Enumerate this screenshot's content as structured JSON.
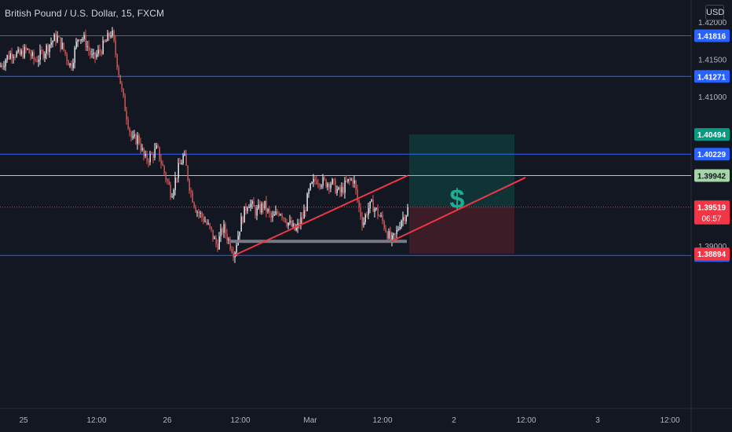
{
  "title": "British Pound / U.S. Dollar, 15, FXCM",
  "currency_button": "USD",
  "chart_data": {
    "type": "candlestick",
    "ylim": [
      1.3865,
      1.4215
    ],
    "y_ticks": [
      "1.42000",
      "1.41500",
      "1.41000",
      "1.39000"
    ],
    "x_ticks": [
      "25",
      "12:00",
      "26",
      "12:00",
      "Mar",
      "12:00",
      "2",
      "12:00",
      "3",
      "12:00"
    ],
    "price_lines": [
      {
        "value": 1.41816,
        "label": "1.41816",
        "color": "#2962ff"
      },
      {
        "value": 1.41271,
        "label": "1.41271",
        "color": "#2962ff"
      },
      {
        "value": 1.40229,
        "label": "1.40229",
        "color": "#2962ff"
      },
      {
        "value": 1.39942,
        "label": "1.39942",
        "color": "#a5d6a7"
      },
      {
        "value": 1.38871,
        "label": "1.38871",
        "color": "#2962ff"
      }
    ],
    "tags": [
      {
        "value": 1.40494,
        "label": "1.40494",
        "bg": "#089981",
        "fg": "#ffffff"
      },
      {
        "value": 1.39528,
        "label": "1.39528",
        "bg": "#4a4e58",
        "fg": "#ffffff"
      },
      {
        "value": 1.38894,
        "label": "1.38894",
        "bg": "#f23645",
        "fg": "#ffffff"
      }
    ],
    "last_price": {
      "value": 1.39519,
      "label": "1.39519",
      "countdown": "06:57",
      "color": "#f23645"
    },
    "close_path": [
      [
        0,
        1.414
      ],
      [
        8,
        1.4152
      ],
      [
        16,
        1.416
      ],
      [
        24,
        1.4155
      ],
      [
        34,
        1.4163
      ],
      [
        44,
        1.4148
      ],
      [
        54,
        1.4158
      ],
      [
        64,
        1.4172
      ],
      [
        72,
        1.418
      ],
      [
        80,
        1.4165
      ],
      [
        90,
        1.414
      ],
      [
        100,
        1.4183
      ],
      [
        108,
        1.4175
      ],
      [
        118,
        1.415
      ],
      [
        126,
        1.416
      ],
      [
        134,
        1.4172
      ],
      [
        142,
        1.4188
      ],
      [
        150,
        1.414
      ],
      [
        156,
        1.41
      ],
      [
        162,
        1.407
      ],
      [
        168,
        1.404
      ],
      [
        176,
        1.4045
      ],
      [
        184,
        1.4015
      ],
      [
        192,
        1.402
      ],
      [
        200,
        1.403
      ],
      [
        210,
        1.3995
      ],
      [
        218,
        1.397
      ],
      [
        226,
        1.4
      ],
      [
        234,
        1.4022
      ],
      [
        242,
        1.3975
      ],
      [
        250,
        1.3948
      ],
      [
        260,
        1.3935
      ],
      [
        268,
        1.392
      ],
      [
        276,
        1.39
      ],
      [
        284,
        1.3925
      ],
      [
        292,
        1.3905
      ],
      [
        298,
        1.389
      ],
      [
        306,
        1.393
      ],
      [
        316,
        1.396
      ],
      [
        326,
        1.3945
      ],
      [
        336,
        1.3955
      ],
      [
        346,
        1.3935
      ],
      [
        356,
        1.3948
      ],
      [
        366,
        1.3932
      ],
      [
        376,
        1.392
      ],
      [
        386,
        1.394
      ],
      [
        394,
        1.3975
      ],
      [
        402,
        1.399
      ],
      [
        412,
        1.3985
      ],
      [
        422,
        1.3985
      ],
      [
        432,
        1.397
      ],
      [
        442,
        1.3985
      ],
      [
        450,
        1.399
      ],
      [
        456,
        1.3955
      ],
      [
        462,
        1.393
      ],
      [
        468,
        1.395
      ],
      [
        474,
        1.3955
      ],
      [
        480,
        1.3945
      ],
      [
        486,
        1.3935
      ],
      [
        492,
        1.392
      ],
      [
        498,
        1.3905
      ],
      [
        504,
        1.3915
      ],
      [
        510,
        1.3935
      ],
      [
        516,
        1.3942
      ],
      [
        520,
        1.3952
      ]
    ],
    "trendlines": [
      {
        "from": [
          298,
          1.38871
        ],
        "to": [
          519,
          1.39942
        ],
        "color": "#f23645"
      },
      {
        "from": [
          498,
          1.3906
        ],
        "to": [
          669,
          1.39915
        ],
        "color": "#f23645"
      }
    ],
    "support_bar": {
      "from_x": 293,
      "to_x": 518,
      "value": 1.3906
    },
    "position": {
      "x_from": 521,
      "x_to": 655,
      "target": 1.40494,
      "entry": 1.39528,
      "stop": 1.38894,
      "symbol": "$"
    }
  }
}
